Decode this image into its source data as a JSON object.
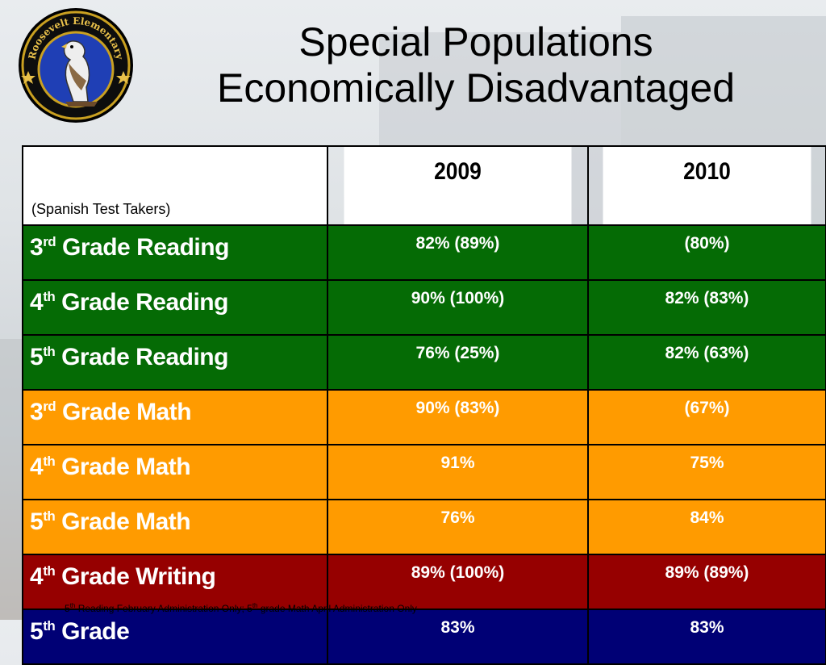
{
  "logo": {
    "text": "Roosevelt Elementary",
    "icon": "hawk-emblem-icon"
  },
  "title": {
    "line1": "Special Populations",
    "line2": "Economically Disadvantaged"
  },
  "table": {
    "corner_label": "(Spanish Test Takers)",
    "years": [
      "2009",
      "2010"
    ],
    "rows": [
      {
        "num": "3",
        "sup": "rd",
        "label": "Grade Reading",
        "y2009": "82% (89%)",
        "y2010": "(80%)"
      },
      {
        "num": "4",
        "sup": "th",
        "label": "Grade Reading",
        "y2009": "90% (100%)",
        "y2010": "82% (83%)"
      },
      {
        "num": "5",
        "sup": "th",
        "label": "Grade Reading",
        "y2009": "76% (25%)",
        "y2010": "82% (63%)"
      },
      {
        "num": "3",
        "sup": "rd",
        "label": "Grade Math",
        "y2009": "90% (83%)",
        "y2010": "(67%)"
      },
      {
        "num": "4",
        "sup": "th",
        "label": "Grade Math",
        "y2009": "91%",
        "y2010": "75%"
      },
      {
        "num": "5",
        "sup": "th",
        "label": "Grade Math",
        "y2009": "76%",
        "y2010": "84%"
      },
      {
        "num": "4",
        "sup": "th",
        "label": "Grade Writing",
        "y2009": "89% (100%)",
        "y2010": "89% (89%)"
      },
      {
        "num": "5",
        "sup": "th",
        "label": "Grade",
        "y2009": "83%",
        "y2010": "83%"
      }
    ],
    "colors": {
      "reading": "#056b05",
      "math": "#ff9b00",
      "writing": "#960000",
      "grade": "#000075"
    }
  },
  "footnote": {
    "a_num": "5",
    "a_sup": "th",
    "a_text": " Reading February Administration Only; ",
    "b_num": "5",
    "b_sup": "th",
    "b_text": " grade Math April Administration Only"
  }
}
